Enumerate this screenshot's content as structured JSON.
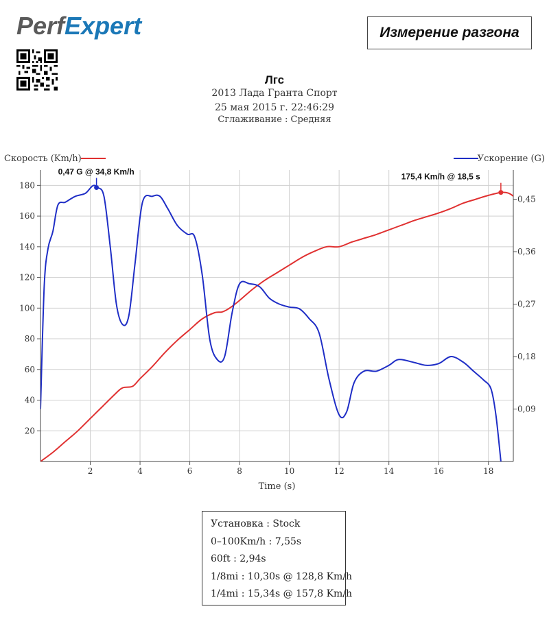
{
  "brand": {
    "logo_text": "PerfExpert",
    "colors": {
      "logo_dark": "#555555",
      "logo_accent": "#1b78b7"
    },
    "qr_icon": "qr-code-icon"
  },
  "header": {
    "box_title": "Измерение разгона",
    "name": "Лгс",
    "car": "2013 Лада Гранта  Спорт",
    "date": "25 мая 2015 г. 22:46:29",
    "smoothing": "Сглаживание : Средняя"
  },
  "chart_data": {
    "type": "line",
    "xlabel": "Time (s)",
    "xlim": [
      0,
      19
    ],
    "xticks": [
      "2",
      "4",
      "6",
      "8",
      "10",
      "12",
      "14",
      "16",
      "18"
    ],
    "left_axis": {
      "label": "Скорость (Km/h)",
      "ylim": [
        0,
        190
      ],
      "ticks": [
        "20",
        "40",
        "60",
        "80",
        "100",
        "120",
        "140",
        "160",
        "180"
      ]
    },
    "right_axis": {
      "label": "Ускорение (G)",
      "ylim": [
        0,
        0.5
      ],
      "ticks": [
        "0,09",
        "0,18",
        "0,27",
        "0,36",
        "0,45"
      ]
    },
    "grid": true,
    "legend": {
      "left": "top-left",
      "right": "top-right"
    },
    "series": [
      {
        "name": "Скорость (Km/h)",
        "axis": "left",
        "color": "#e03131",
        "points": [
          [
            0,
            0
          ],
          [
            0.5,
            6
          ],
          [
            1,
            13
          ],
          [
            1.5,
            20
          ],
          [
            2,
            28
          ],
          [
            2.5,
            36
          ],
          [
            3,
            44
          ],
          [
            3.3,
            48
          ],
          [
            3.7,
            49
          ],
          [
            4,
            54
          ],
          [
            4.5,
            62
          ],
          [
            5,
            71
          ],
          [
            5.5,
            79
          ],
          [
            6,
            86
          ],
          [
            6.5,
            93
          ],
          [
            7,
            97
          ],
          [
            7.3,
            97.5
          ],
          [
            7.6,
            100
          ],
          [
            8,
            105
          ],
          [
            8.5,
            112
          ],
          [
            9,
            118
          ],
          [
            9.5,
            123
          ],
          [
            10,
            128
          ],
          [
            10.5,
            133
          ],
          [
            11,
            137
          ],
          [
            11.5,
            140
          ],
          [
            12,
            140
          ],
          [
            12.5,
            143
          ],
          [
            13,
            145.5
          ],
          [
            13.5,
            148
          ],
          [
            14,
            151
          ],
          [
            14.5,
            154
          ],
          [
            15,
            157
          ],
          [
            15.5,
            159.5
          ],
          [
            16,
            162
          ],
          [
            16.5,
            165
          ],
          [
            17,
            168.5
          ],
          [
            17.5,
            171
          ],
          [
            18,
            173.5
          ],
          [
            18.5,
            175.4
          ],
          [
            18.8,
            175
          ],
          [
            19,
            173
          ]
        ]
      },
      {
        "name": "Ускорение (G)",
        "axis": "right",
        "color": "#1f2ec6",
        "points": [
          [
            0,
            0.09
          ],
          [
            0.15,
            0.3
          ],
          [
            0.3,
            0.365
          ],
          [
            0.5,
            0.395
          ],
          [
            0.7,
            0.44
          ],
          [
            1,
            0.445
          ],
          [
            1.4,
            0.455
          ],
          [
            1.8,
            0.46
          ],
          [
            2.1,
            0.473
          ],
          [
            2.3,
            0.47
          ],
          [
            2.55,
            0.455
          ],
          [
            2.8,
            0.37
          ],
          [
            3.05,
            0.27
          ],
          [
            3.3,
            0.235
          ],
          [
            3.55,
            0.25
          ],
          [
            3.8,
            0.34
          ],
          [
            4.1,
            0.445
          ],
          [
            4.5,
            0.455
          ],
          [
            4.8,
            0.455
          ],
          [
            5.1,
            0.435
          ],
          [
            5.5,
            0.405
          ],
          [
            5.9,
            0.39
          ],
          [
            6.2,
            0.385
          ],
          [
            6.5,
            0.32
          ],
          [
            6.8,
            0.21
          ],
          [
            7.1,
            0.175
          ],
          [
            7.4,
            0.18
          ],
          [
            7.7,
            0.255
          ],
          [
            8,
            0.305
          ],
          [
            8.4,
            0.305
          ],
          [
            8.8,
            0.3
          ],
          [
            9.2,
            0.28
          ],
          [
            9.6,
            0.27
          ],
          [
            10,
            0.265
          ],
          [
            10.4,
            0.262
          ],
          [
            10.8,
            0.245
          ],
          [
            11.2,
            0.22
          ],
          [
            11.6,
            0.14
          ],
          [
            12,
            0.08
          ],
          [
            12.3,
            0.085
          ],
          [
            12.6,
            0.135
          ],
          [
            13,
            0.155
          ],
          [
            13.5,
            0.155
          ],
          [
            14,
            0.165
          ],
          [
            14.4,
            0.175
          ],
          [
            15,
            0.17
          ],
          [
            15.5,
            0.165
          ],
          [
            16,
            0.168
          ],
          [
            16.5,
            0.18
          ],
          [
            17,
            0.17
          ],
          [
            17.4,
            0.155
          ],
          [
            17.8,
            0.14
          ],
          [
            18.1,
            0.125
          ],
          [
            18.3,
            0.08
          ],
          [
            18.5,
            0
          ]
        ]
      }
    ],
    "annotations": [
      {
        "series": 1,
        "x": 2.25,
        "y": 0.47,
        "text": "0,47 G @ 34,8 Km/h"
      },
      {
        "series": 0,
        "x": 18.5,
        "y": 175.4,
        "text": "175,4 Km/h @ 18,5 s"
      }
    ]
  },
  "summary": {
    "lines": [
      "Установка : Stock",
      "0–100Km/h : 7,55s",
      "60ft : 2,94s",
      "1/8mi : 10,30s @ 128,8 Km/h",
      "1/4mi : 15,34s @ 157,8 Km/h"
    ]
  }
}
